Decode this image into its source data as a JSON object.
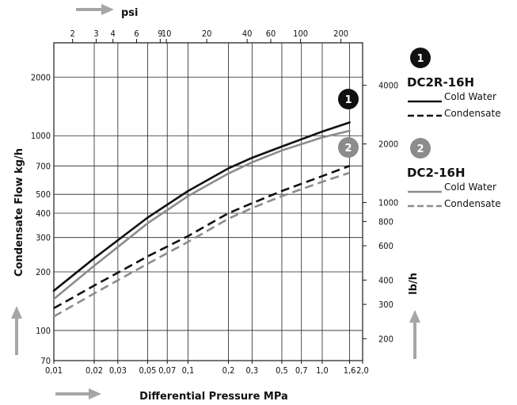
{
  "chart_data": {
    "type": "line",
    "title": "",
    "xlabel": "Differential Pressure MPa",
    "x2label": "psi",
    "ylabel": "Condensate Flow kg/h",
    "y2label": "lb/h",
    "xscale": "log",
    "yscale": "log",
    "xlim": [
      0.01,
      2.0
    ],
    "ylim": [
      70,
      3000
    ],
    "grid": true,
    "x_ticks": [
      "0,01",
      "0,02",
      "0,03",
      "0,05",
      "0,07",
      "0,1",
      "0,2",
      "0,3",
      "0,5",
      "0,7",
      "1,0",
      "1,6",
      "2,0"
    ],
    "x_tick_values": [
      0.01,
      0.02,
      0.03,
      0.05,
      0.07,
      0.1,
      0.2,
      0.3,
      0.5,
      0.7,
      1.0,
      1.6,
      2.0
    ],
    "x2_ticks": [
      "2",
      "3",
      "4",
      "6",
      "9",
      "10",
      "20",
      "40",
      "60",
      "100",
      "200"
    ],
    "x2_tick_values": [
      2,
      3,
      4,
      6,
      9,
      10,
      20,
      40,
      60,
      100,
      200
    ],
    "y_ticks": [
      "70",
      "100",
      "200",
      "300",
      "400",
      "500",
      "700",
      "1000",
      "2000"
    ],
    "y_tick_values": [
      70,
      100,
      200,
      300,
      400,
      500,
      700,
      1000,
      2000
    ],
    "y2_ticks": [
      "200",
      "300",
      "400",
      "600",
      "800",
      "1000",
      "2000",
      "4000"
    ],
    "y2_tick_values": [
      200,
      300,
      400,
      600,
      800,
      1000,
      2000,
      4000
    ],
    "legend_position": "right",
    "groups": [
      {
        "badge": "1",
        "name": "DC2R-16H",
        "color": "#111111"
      },
      {
        "badge": "2",
        "name": "DC2-16H",
        "color": "#8c8c8c"
      }
    ],
    "series": [
      {
        "name": "Cold Water",
        "group": 0,
        "style": "solid",
        "color": "#111111",
        "x": [
          0.01,
          0.02,
          0.05,
          0.1,
          0.2,
          0.3,
          0.5,
          1.0,
          1.6
        ],
        "y": [
          160,
          235,
          380,
          520,
          680,
          770,
          880,
          1050,
          1170
        ]
      },
      {
        "name": "Condensate",
        "group": 0,
        "style": "dashed",
        "color": "#111111",
        "x": [
          0.01,
          0.02,
          0.05,
          0.1,
          0.2,
          0.3,
          0.5,
          1.0,
          1.6
        ],
        "y": [
          130,
          170,
          240,
          305,
          400,
          450,
          520,
          620,
          700
        ]
      },
      {
        "name": "Cold Water",
        "group": 1,
        "style": "solid",
        "color": "#8c8c8c",
        "x": [
          0.01,
          0.02,
          0.05,
          0.1,
          0.2,
          0.3,
          0.5,
          1.0,
          1.6
        ],
        "y": [
          145,
          215,
          355,
          490,
          640,
          730,
          840,
          980,
          1060
        ]
      },
      {
        "name": "Condensate",
        "group": 1,
        "style": "dashed",
        "color": "#8c8c8c",
        "x": [
          0.01,
          0.02,
          0.05,
          0.1,
          0.2,
          0.3,
          0.5,
          1.0,
          1.6
        ],
        "y": [
          118,
          155,
          220,
          285,
          375,
          425,
          490,
          580,
          645
        ]
      }
    ]
  }
}
